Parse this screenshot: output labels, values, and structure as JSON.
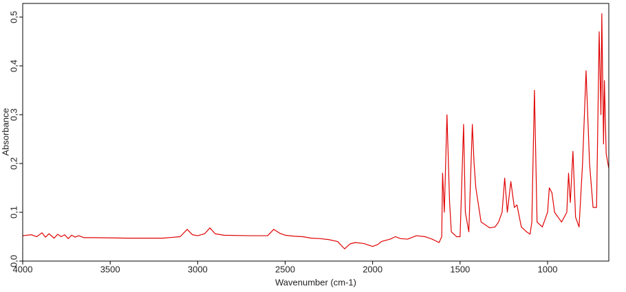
{
  "chart_data": {
    "type": "line",
    "xlabel": "Wavenumber (cm-1)",
    "ylabel": "Absorbance",
    "xlim": [
      4000,
      650
    ],
    "ylim": [
      0,
      0.528
    ],
    "xticks": [
      4000,
      3500,
      3000,
      2500,
      2000,
      1500,
      1000
    ],
    "yticks": [
      {
        "value": 0,
        "label": "0,0"
      },
      {
        "value": 0.1,
        "label": "0,1"
      },
      {
        "value": 0.2,
        "label": "0,2"
      },
      {
        "value": 0.3,
        "label": "0,3"
      },
      {
        "value": 0.4,
        "label": "0,4"
      },
      {
        "value": 0.5,
        "label": "0,5"
      }
    ],
    "x": [
      4000,
      3950,
      3920,
      3890,
      3870,
      3850,
      3820,
      3800,
      3780,
      3760,
      3740,
      3720,
      3700,
      3680,
      3650,
      3600,
      3400,
      3200,
      3100,
      3060,
      3030,
      3000,
      2960,
      2930,
      2900,
      2850,
      2700,
      2600,
      2565,
      2530,
      2500,
      2450,
      2400,
      2350,
      2300,
      2250,
      2200,
      2160,
      2130,
      2100,
      2050,
      2000,
      1970,
      1950,
      1900,
      1870,
      1840,
      1800,
      1750,
      1700,
      1660,
      1620,
      1605,
      1600,
      1590,
      1575,
      1560,
      1550,
      1520,
      1500,
      1480,
      1470,
      1450,
      1430,
      1420,
      1410,
      1380,
      1330,
      1300,
      1280,
      1260,
      1245,
      1230,
      1210,
      1190,
      1175,
      1150,
      1120,
      1100,
      1090,
      1075,
      1060,
      1030,
      1000,
      990,
      975,
      960,
      920,
      890,
      880,
      870,
      855,
      840,
      820,
      800,
      780,
      760,
      740,
      720,
      705,
      695,
      690,
      680,
      675,
      665,
      650
    ],
    "series": [
      {
        "color": "#e00000",
        "values": [
          0.052,
          0.054,
          0.05,
          0.058,
          0.049,
          0.056,
          0.047,
          0.055,
          0.05,
          0.054,
          0.046,
          0.053,
          0.049,
          0.052,
          0.048,
          0.048,
          0.047,
          0.047,
          0.05,
          0.065,
          0.054,
          0.052,
          0.056,
          0.068,
          0.056,
          0.053,
          0.052,
          0.052,
          0.065,
          0.057,
          0.053,
          0.051,
          0.05,
          0.047,
          0.046,
          0.044,
          0.04,
          0.025,
          0.035,
          0.038,
          0.036,
          0.03,
          0.034,
          0.04,
          0.045,
          0.05,
          0.046,
          0.045,
          0.052,
          0.05,
          0.045,
          0.038,
          0.05,
          0.18,
          0.1,
          0.3,
          0.12,
          0.06,
          0.05,
          0.05,
          0.28,
          0.1,
          0.06,
          0.28,
          0.2,
          0.15,
          0.08,
          0.068,
          0.07,
          0.08,
          0.1,
          0.17,
          0.1,
          0.163,
          0.11,
          0.115,
          0.07,
          0.06,
          0.055,
          0.08,
          0.35,
          0.08,
          0.07,
          0.1,
          0.15,
          0.14,
          0.1,
          0.08,
          0.1,
          0.18,
          0.12,
          0.225,
          0.09,
          0.07,
          0.2,
          0.39,
          0.2,
          0.11,
          0.11,
          0.47,
          0.3,
          0.507,
          0.24,
          0.37,
          0.22,
          0.19
        ]
      }
    ]
  }
}
